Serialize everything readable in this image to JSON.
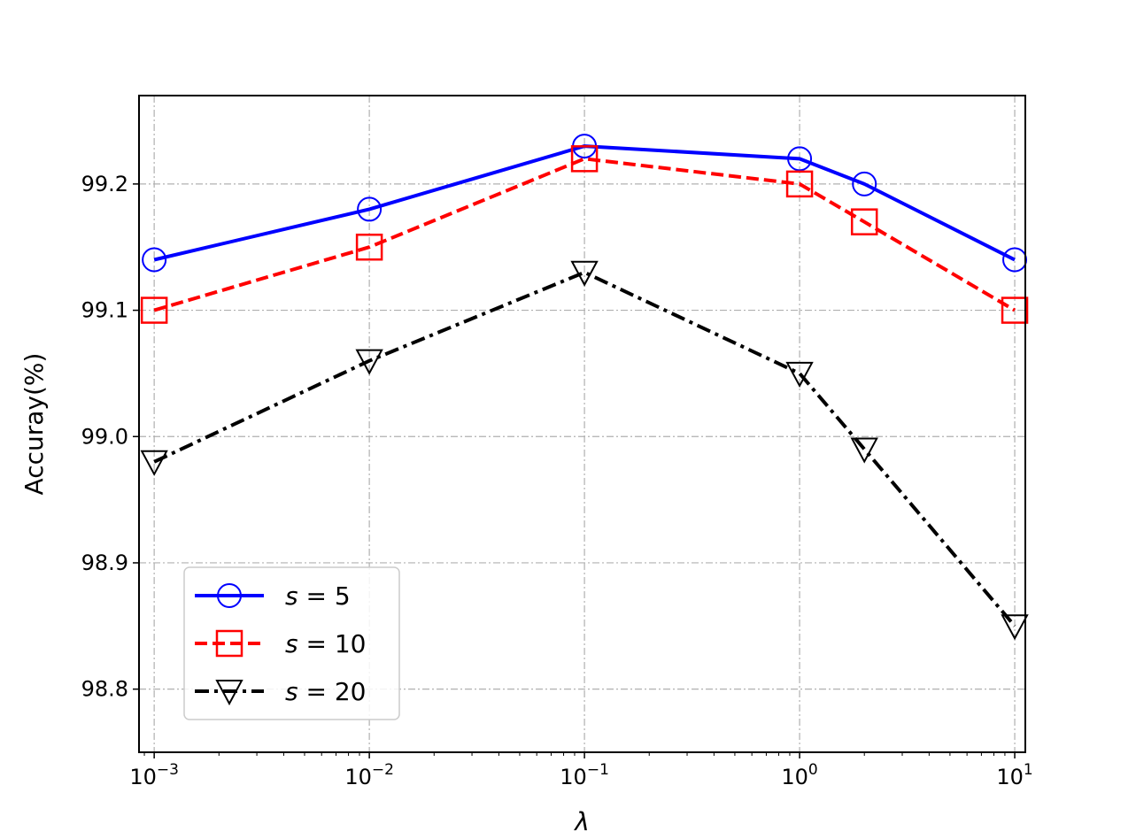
{
  "chart_data": {
    "type": "line",
    "x": [
      0.001,
      0.01,
      0.1,
      1,
      2,
      10
    ],
    "x_scale": "log",
    "xlim": [
      0.00085,
      11.2
    ],
    "ylim": [
      98.75,
      99.27
    ],
    "xlabel": "λ",
    "ylabel": "Accuray(%)",
    "x_ticks": [
      {
        "base": "10",
        "exp": "−3"
      },
      {
        "base": "10",
        "exp": "−2"
      },
      {
        "base": "10",
        "exp": "−1"
      },
      {
        "base": "10",
        "exp": "0"
      },
      {
        "base": "10",
        "exp": "1"
      }
    ],
    "y_ticks": [
      "98.8",
      "98.9",
      "99.0",
      "99.1",
      "99.2"
    ],
    "grid": true,
    "legend_position": "lower-left",
    "series": [
      {
        "name": "s = 5",
        "var": "s",
        "eq": "=",
        "num": "5",
        "values": [
          99.14,
          99.18,
          99.23,
          99.22,
          99.2,
          99.14
        ],
        "color": "#0000ff",
        "dash": "solid",
        "marker": "circle"
      },
      {
        "name": "s = 10",
        "var": "s",
        "eq": "=",
        "num": "10",
        "values": [
          99.1,
          99.15,
          99.22,
          99.2,
          99.17,
          99.1
        ],
        "color": "#ff0000",
        "dash": "dashed",
        "marker": "square"
      },
      {
        "name": "s = 20",
        "var": "s",
        "eq": "=",
        "num": "20",
        "values": [
          98.98,
          99.06,
          99.13,
          99.05,
          98.99,
          98.85
        ],
        "color": "#000000",
        "dash": "dashdot",
        "marker": "triangle-down"
      }
    ]
  }
}
